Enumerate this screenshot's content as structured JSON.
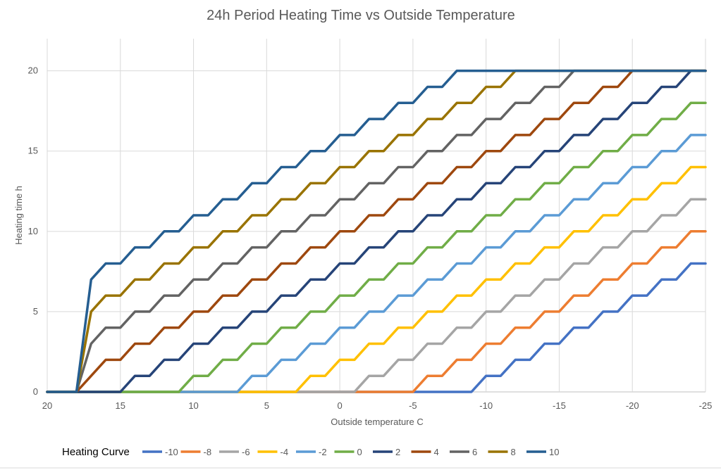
{
  "chart_data": {
    "type": "line",
    "title": "24h Period Heating Time vs Outside Temperature",
    "xlabel": "Outside temperature  C",
    "ylabel": "Heating time h",
    "xlim": [
      20,
      -25
    ],
    "ylim": [
      0,
      22
    ],
    "xticks": [
      20,
      15,
      10,
      5,
      0,
      -5,
      -10,
      -15,
      -20,
      -25
    ],
    "xtick_labels": [
      "20",
      "15",
      "10",
      "5",
      "0",
      "-5",
      "-10",
      "-15",
      "-20",
      "-25"
    ],
    "yticks": [
      0,
      5,
      10,
      15,
      20
    ],
    "ytick_labels": [
      "0",
      "5",
      "10",
      "15",
      "20"
    ],
    "grid": true,
    "legend_title": "Heating Curve",
    "legend_position": "bottom",
    "series": [
      {
        "name": "-10",
        "color": "#4472C4",
        "offset": -10
      },
      {
        "name": "-8",
        "color": "#ED7D31",
        "offset": -8
      },
      {
        "name": "-6",
        "color": "#A5A5A5",
        "offset": -6
      },
      {
        "name": "-4",
        "color": "#FFC000",
        "offset": -4
      },
      {
        "name": "-2",
        "color": "#5B9BD5",
        "offset": -2
      },
      {
        "name": "0",
        "color": "#70AD47",
        "offset": 0
      },
      {
        "name": "2",
        "color": "#264478",
        "offset": 2
      },
      {
        "name": "4",
        "color": "#9E480E",
        "offset": 4
      },
      {
        "name": "6",
        "color": "#636363",
        "offset": 6
      },
      {
        "name": "8",
        "color": "#997300",
        "offset": 8
      },
      {
        "name": "10",
        "color": "#255E91",
        "offset": 10
      }
    ],
    "curve_rule": "heating_hours = clamp(trunc(6 + offset - outside_temperature / 2), 0, 20) for outside_temperature <= 17; 0 above 17"
  }
}
